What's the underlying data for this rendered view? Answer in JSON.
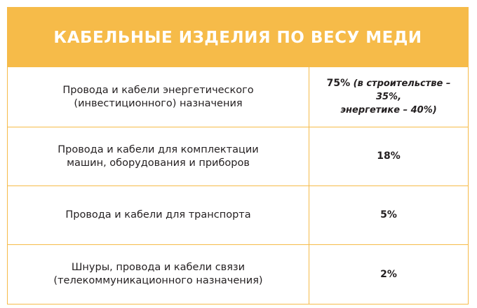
{
  "table": {
    "title": "КАБЕЛЬНЫЕ ИЗДЕЛИЯ ПО ВЕСУ МЕДИ",
    "rows": [
      {
        "label_lines": [
          "Провода и кабели энергетического",
          "(инвестиционного) назначения"
        ],
        "value": "75%",
        "note_line1": "(в строительстве – 35%,",
        "note_line2": "энергетике – 40%)"
      },
      {
        "label_lines": [
          "Провода и кабели для комплектации",
          "машин, оборудования и приборов"
        ],
        "value": "18%"
      },
      {
        "label_lines": [
          "Провода и кабели для транспорта"
        ],
        "value": "5%"
      },
      {
        "label_lines": [
          "Шнуры, провода и кабели связи",
          "(телекоммуникационного назначения)"
        ],
        "value": "2%"
      }
    ]
  },
  "colors": {
    "accent": "#f6bb49",
    "text": "#231f20",
    "header_text": "#ffffff"
  }
}
